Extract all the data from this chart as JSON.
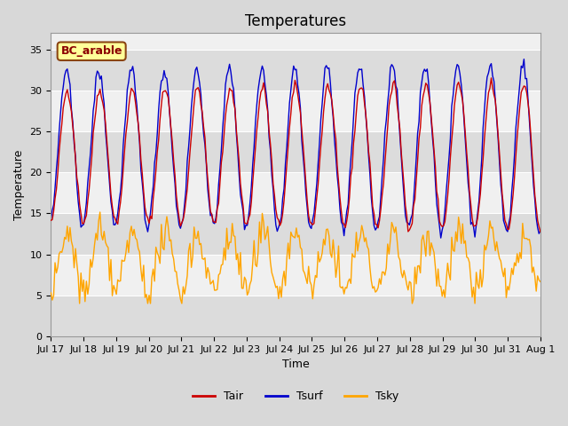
{
  "title": "Temperatures",
  "xlabel": "Time",
  "ylabel": "Temperature",
  "ylim": [
    0,
    37
  ],
  "yticks": [
    0,
    5,
    10,
    15,
    20,
    25,
    30,
    35
  ],
  "n_days": 15,
  "hours_per_day": 24,
  "tair_color": "#CC0000",
  "tsurf_color": "#0000CC",
  "tsky_color": "#FFA500",
  "line_width": 1.0,
  "plot_bg": "#F0F0F0",
  "legend_label": "BC_arable",
  "legend_bg": "#FFFF99",
  "legend_edge": "#8B4513",
  "title_fontsize": 12,
  "label_fontsize": 9,
  "tick_fontsize": 8,
  "date_labels": [
    "Jul 17",
    "Jul 18",
    "Jul 19",
    "Jul 20",
    "Jul 21",
    "Jul 22",
    "Jul 23",
    "Jul 24",
    "Jul 25",
    "Jul 26",
    "Jul 27",
    "Jul 28",
    "Jul 29",
    "Jul 30",
    "Jul 31",
    "Aug 1"
  ]
}
